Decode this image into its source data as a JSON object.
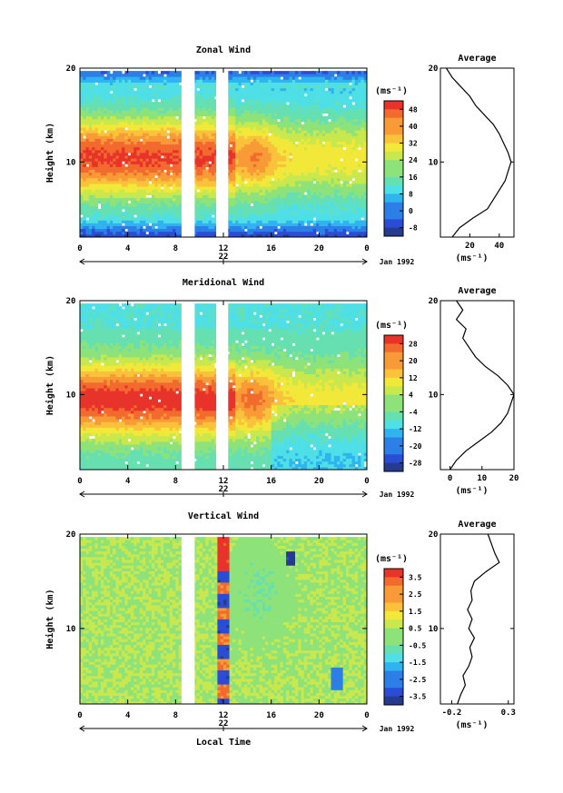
{
  "chart_data": [
    {
      "type": "heatmap",
      "title": "Zonal Wind",
      "ylabel": "Height (km)",
      "ylim": [
        2,
        20
      ],
      "yticks": [
        "10",
        "20"
      ],
      "xlim": [
        0,
        24
      ],
      "xticks": [
        "0",
        "4",
        "8",
        "12",
        "16",
        "20",
        "0"
      ],
      "date_day": "22",
      "date_label": "Jan 1992",
      "colorbar": {
        "unit": "(ms⁻¹)",
        "ticks": [
          "48",
          "40",
          "32",
          "24",
          "16",
          "8",
          "0",
          "-8"
        ],
        "min": -12,
        "max": 52
      },
      "data_gaps_hours": [
        [
          8.5,
          9.6
        ],
        [
          11.4,
          12.4
        ]
      ],
      "profile": {
        "title": "Average",
        "xlabel": "(ms⁻¹)",
        "xticks": [
          "20",
          "40"
        ],
        "xlim": [
          0,
          50
        ],
        "yticks": [
          "10",
          "20"
        ],
        "height_km": [
          2,
          3,
          4,
          5,
          6,
          7,
          8,
          9,
          10,
          11,
          12,
          13,
          14,
          15,
          16,
          17,
          18,
          19,
          20
        ],
        "values": [
          8,
          13,
          22,
          32,
          36,
          40,
          44,
          46,
          48,
          46,
          43,
          40,
          36,
          30,
          24,
          20,
          14,
          8,
          4
        ]
      }
    },
    {
      "type": "heatmap",
      "title": "Meridional Wind",
      "ylabel": "Height (km)",
      "ylim": [
        2,
        20
      ],
      "yticks": [
        "10",
        "20"
      ],
      "xlim": [
        0,
        24
      ],
      "xticks": [
        "0",
        "4",
        "8",
        "12",
        "16",
        "20",
        "0"
      ],
      "date_day": "22",
      "date_label": "Jan 1992",
      "colorbar": {
        "unit": "(ms⁻¹)",
        "ticks": [
          "28",
          "20",
          "12",
          "4",
          "-4",
          "-12",
          "-20",
          "-28"
        ],
        "min": -30,
        "max": 30
      },
      "data_gaps_hours": [
        [
          8.5,
          9.6
        ],
        [
          11.4,
          12.4
        ]
      ],
      "profile": {
        "title": "Average",
        "xlabel": "(ms⁻¹)",
        "xticks": [
          "0",
          "10",
          "20"
        ],
        "xlim": [
          -3,
          20
        ],
        "yticks": [
          "10",
          "20"
        ],
        "height_km": [
          2,
          3,
          4,
          5,
          6,
          7,
          8,
          9,
          10,
          11,
          12,
          13,
          14,
          15,
          16,
          17,
          18,
          19,
          20
        ],
        "values": [
          0,
          2,
          5,
          9,
          13,
          16,
          18,
          19,
          20,
          18,
          15,
          11,
          8,
          6,
          4,
          5,
          2,
          4,
          2
        ]
      }
    },
    {
      "type": "heatmap",
      "title": "Vertical Wind",
      "ylabel": "Height (km)",
      "ylim": [
        2,
        20
      ],
      "yticks": [
        "10",
        "20"
      ],
      "xlim": [
        0,
        24
      ],
      "xticks": [
        "0",
        "4",
        "8",
        "12",
        "16",
        "20",
        "0"
      ],
      "date_day": "22",
      "date_label": "Jan 1992",
      "xlabel": "Local Time",
      "colorbar": {
        "unit": "(ms⁻¹)",
        "ticks": [
          "3.5",
          "2.5",
          "1.5",
          "0.5",
          "-0.5",
          "-1.5",
          "-2.5",
          "-3.5"
        ],
        "min": -4,
        "max": 4
      },
      "data_gaps_hours": [
        [
          8.5,
          9.6
        ]
      ],
      "profile": {
        "title": "Average",
        "xlabel": "(ms⁻¹)",
        "xticks": [
          "-0.2",
          "0.3"
        ],
        "xlim": [
          -0.3,
          0.35
        ],
        "yticks": [
          "10",
          "20"
        ],
        "height_km": [
          2,
          3,
          4,
          5,
          6,
          7,
          8,
          9,
          10,
          11,
          12,
          13,
          14,
          15,
          16,
          17,
          18,
          19,
          20
        ],
        "values": [
          -0.15,
          -0.12,
          -0.08,
          -0.1,
          -0.05,
          -0.02,
          -0.04,
          0.0,
          -0.05,
          -0.02,
          -0.06,
          -0.02,
          -0.03,
          0.0,
          0.1,
          0.22,
          0.18,
          0.15,
          0.12
        ]
      }
    }
  ]
}
